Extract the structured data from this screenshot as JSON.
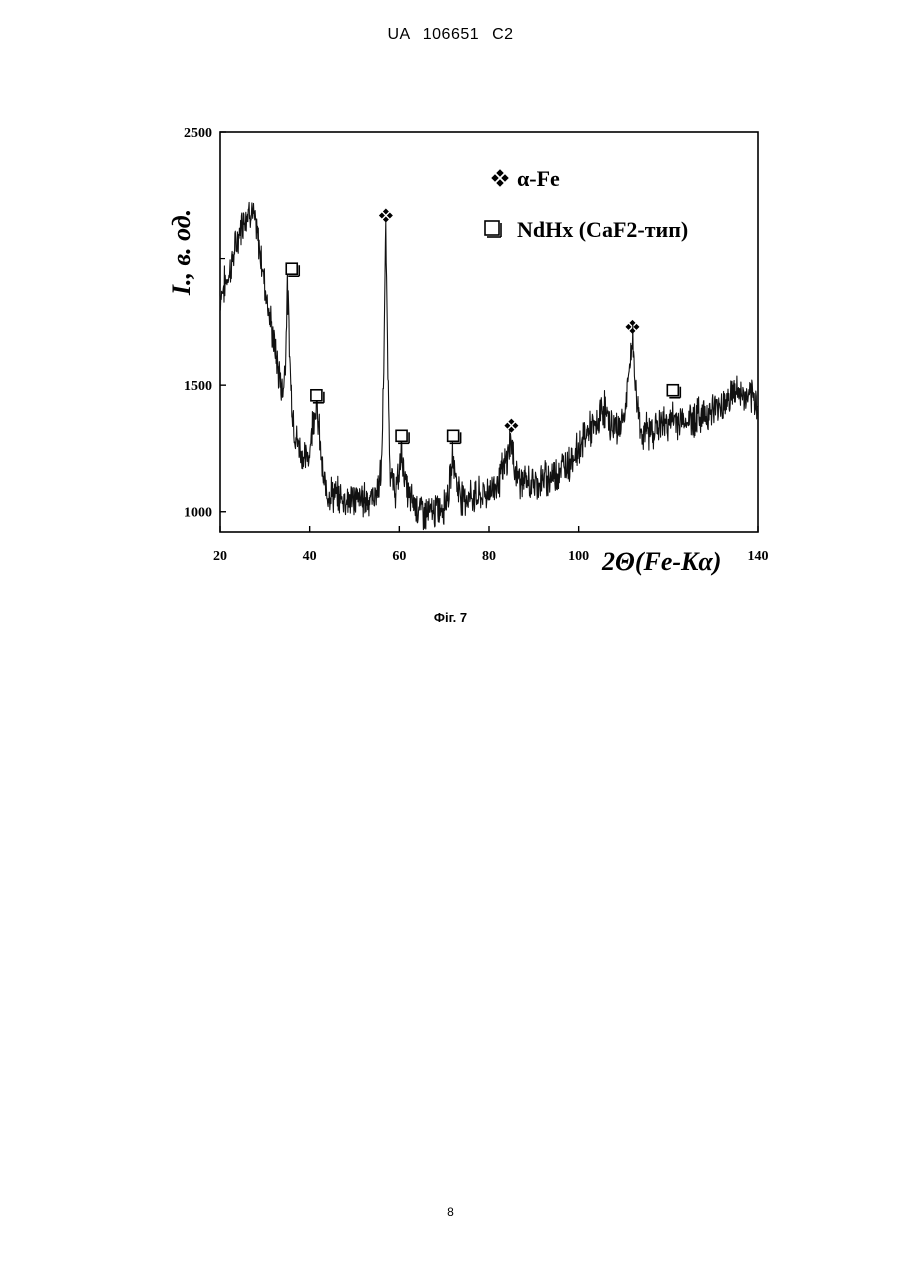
{
  "header": {
    "text": "UA   106651   C2"
  },
  "caption": {
    "text": "Фіг. 7"
  },
  "page_number": {
    "text": "8"
  },
  "chart_data": {
    "type": "line",
    "title": "",
    "xlabel": "2Θ(Fe-Kα)",
    "ylabel": "I., в. од.",
    "xlim": [
      20,
      140
    ],
    "ylim": [
      920,
      2500
    ],
    "xticks": [
      20,
      40,
      60,
      80,
      100,
      140
    ],
    "xtick_labels": [
      "20",
      "40",
      "60",
      "80",
      "100",
      "140"
    ],
    "yticks": [
      1000,
      1500,
      2500
    ],
    "ytick_labels": [
      "1000",
      "1500",
      "2500"
    ],
    "grid": false,
    "legend_position": "top-right",
    "legend": [
      {
        "marker": "diamond-cluster",
        "label": "α-Fe"
      },
      {
        "marker": "square",
        "label": "NdHx (CaF2-тип)"
      }
    ],
    "series": [
      {
        "x": [
          20,
          22,
          24,
          25,
          26,
          27,
          28,
          29,
          30,
          31,
          32,
          33,
          34,
          34.6,
          35.0,
          35.4,
          35.8,
          36.2,
          36.8,
          38,
          39,
          40,
          40.8,
          41.5,
          42.2,
          43,
          44,
          46,
          48,
          50,
          52,
          54,
          55,
          56,
          56.5,
          57.0,
          57.5,
          58,
          59,
          59.8,
          60.5,
          61.2,
          62,
          64,
          66,
          68,
          70,
          71.2,
          72.0,
          72.8,
          74,
          76,
          78,
          80,
          82,
          84,
          84.8,
          85.6,
          87,
          90,
          94,
          98,
          100,
          102,
          104,
          105.5,
          106,
          107,
          109,
          110.5,
          111.3,
          112,
          112.8,
          114,
          116,
          118,
          121,
          124,
          127,
          130,
          133,
          135,
          137,
          140
        ],
        "y": [
          1850,
          1940,
          2080,
          2150,
          2180,
          2200,
          2120,
          2020,
          1900,
          1780,
          1670,
          1560,
          1470,
          1600,
          1900,
          1720,
          1500,
          1400,
          1300,
          1240,
          1200,
          1240,
          1380,
          1420,
          1300,
          1120,
          1080,
          1060,
          1050,
          1050,
          1050,
          1055,
          1080,
          1150,
          1550,
          2110,
          1500,
          1150,
          1080,
          1120,
          1260,
          1130,
          1060,
          1020,
          990,
          1000,
          1030,
          1100,
          1230,
          1110,
          1060,
          1060,
          1060,
          1080,
          1120,
          1200,
          1290,
          1180,
          1120,
          1110,
          1140,
          1200,
          1250,
          1320,
          1330,
          1420,
          1390,
          1340,
          1330,
          1400,
          1560,
          1690,
          1460,
          1310,
          1320,
          1340,
          1360,
          1360,
          1380,
          1400,
          1440,
          1480,
          1450,
          1430
        ]
      }
    ],
    "annotations": [
      {
        "marker": "square",
        "x": 36,
        "y": 1960
      },
      {
        "marker": "square",
        "x": 41.5,
        "y": 1460
      },
      {
        "marker": "diamond-cluster",
        "x": 57,
        "y": 2170
      },
      {
        "marker": "square",
        "x": 60.5,
        "y": 1300
      },
      {
        "marker": "square",
        "x": 72,
        "y": 1300
      },
      {
        "marker": "diamond-cluster",
        "x": 85,
        "y": 1340
      },
      {
        "marker": "diamond-cluster",
        "x": 112,
        "y": 1730
      },
      {
        "marker": "square",
        "x": 121,
        "y": 1480
      }
    ]
  }
}
